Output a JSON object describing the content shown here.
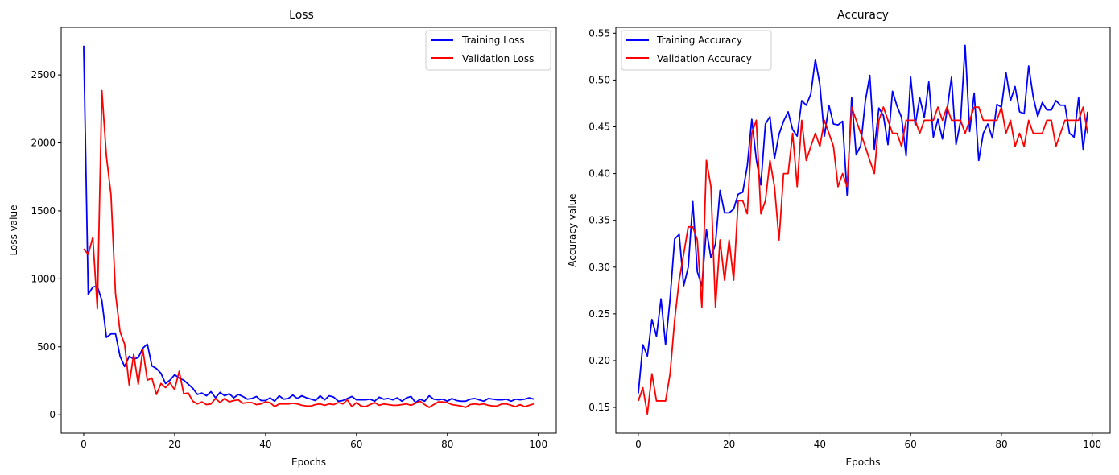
{
  "chart_data": [
    {
      "type": "line",
      "title": "Loss",
      "xlabel": "Epochs",
      "ylabel": "Loss value",
      "xlim": [
        -4.95,
        103.95
      ],
      "ylim": [
        -135,
        2850
      ],
      "xticks": [
        0,
        20,
        40,
        60,
        80,
        100
      ],
      "yticks": [
        0,
        500,
        1000,
        1500,
        2000,
        2500
      ],
      "grid": false,
      "legend": "upper right",
      "series": [
        {
          "name": "Training Loss",
          "color": "#0000ff",
          "values": [
            2715,
            885,
            940,
            945,
            840,
            570,
            595,
            595,
            430,
            355,
            430,
            410,
            420,
            490,
            520,
            360,
            340,
            305,
            230,
            255,
            295,
            270,
            255,
            225,
            195,
            150,
            160,
            140,
            170,
            125,
            165,
            140,
            155,
            125,
            150,
            135,
            115,
            120,
            135,
            105,
            105,
            125,
            100,
            140,
            115,
            120,
            145,
            120,
            140,
            125,
            115,
            105,
            140,
            110,
            140,
            130,
            100,
            105,
            120,
            135,
            110,
            110,
            110,
            115,
            100,
            130,
            115,
            120,
            110,
            125,
            100,
            125,
            135,
            90,
            115,
            100,
            140,
            115,
            110,
            115,
            100,
            120,
            105,
            100,
            100,
            115,
            120,
            110,
            100,
            120,
            115,
            110,
            110,
            115,
            100,
            115,
            110,
            115,
            125,
            115
          ]
        },
        {
          "name": "Validation Loss",
          "color": "#ff0000",
          "values": [
            1220,
            1180,
            1305,
            780,
            2385,
            1900,
            1620,
            890,
            610,
            520,
            220,
            445,
            225,
            480,
            255,
            270,
            150,
            230,
            200,
            235,
            185,
            320,
            155,
            160,
            100,
            80,
            95,
            75,
            80,
            120,
            90,
            120,
            95,
            105,
            110,
            85,
            90,
            90,
            75,
            80,
            95,
            90,
            60,
            80,
            80,
            80,
            85,
            80,
            70,
            65,
            65,
            75,
            80,
            70,
            80,
            75,
            90,
            80,
            110,
            60,
            90,
            65,
            60,
            75,
            90,
            70,
            80,
            75,
            70,
            70,
            75,
            80,
            70,
            85,
            100,
            75,
            55,
            75,
            95,
            95,
            90,
            75,
            70,
            65,
            55,
            75,
            80,
            75,
            80,
            70,
            65,
            65,
            80,
            80,
            70,
            60,
            75,
            60,
            70,
            80
          ]
        }
      ]
    },
    {
      "type": "line",
      "title": "Accuracy",
      "xlabel": "Epochs",
      "ylabel": "Accuracy value",
      "xlim": [
        -4.95,
        103.95
      ],
      "ylim": [
        0.1225,
        0.5563
      ],
      "xticks": [
        0,
        20,
        40,
        60,
        80,
        100
      ],
      "yticks": [
        0.15,
        0.2,
        0.25,
        0.3,
        0.35,
        0.4,
        0.45,
        0.5,
        0.55
      ],
      "ytick_labels": [
        "0.15",
        "0.20",
        "0.25",
        "0.30",
        "0.35",
        "0.40",
        "0.45",
        "0.50",
        "0.55"
      ],
      "grid": false,
      "legend": "upper left",
      "series": [
        {
          "name": "Training Accuracy",
          "color": "#0000ff",
          "values": [
            0.165,
            0.217,
            0.205,
            0.244,
            0.226,
            0.266,
            0.217,
            0.266,
            0.33,
            0.335,
            0.28,
            0.3,
            0.37,
            0.295,
            0.28,
            0.34,
            0.31,
            0.325,
            0.382,
            0.358,
            0.358,
            0.362,
            0.378,
            0.38,
            0.408,
            0.458,
            0.415,
            0.388,
            0.453,
            0.461,
            0.416,
            0.442,
            0.456,
            0.466,
            0.447,
            0.44,
            0.478,
            0.473,
            0.485,
            0.522,
            0.495,
            0.44,
            0.473,
            0.453,
            0.452,
            0.456,
            0.377,
            0.481,
            0.42,
            0.43,
            0.477,
            0.505,
            0.426,
            0.47,
            0.462,
            0.431,
            0.488,
            0.472,
            0.46,
            0.419,
            0.503,
            0.452,
            0.481,
            0.46,
            0.498,
            0.439,
            0.458,
            0.437,
            0.467,
            0.503,
            0.431,
            0.456,
            0.537,
            0.445,
            0.486,
            0.414,
            0.443,
            0.453,
            0.438,
            0.474,
            0.471,
            0.508,
            0.478,
            0.493,
            0.466,
            0.464,
            0.515,
            0.482,
            0.461,
            0.476,
            0.468,
            0.468,
            0.478,
            0.473,
            0.473,
            0.443,
            0.439,
            0.481,
            0.426,
            0.466
          ]
        },
        {
          "name": "Validation Accuracy",
          "color": "#ff0000",
          "values": [
            0.157,
            0.171,
            0.143,
            0.186,
            0.157,
            0.157,
            0.157,
            0.186,
            0.243,
            0.286,
            0.314,
            0.343,
            0.343,
            0.329,
            0.257,
            0.414,
            0.386,
            0.257,
            0.329,
            0.286,
            0.329,
            0.286,
            0.371,
            0.371,
            0.357,
            0.443,
            0.457,
            0.357,
            0.371,
            0.414,
            0.386,
            0.329,
            0.4,
            0.4,
            0.443,
            0.386,
            0.457,
            0.414,
            0.429,
            0.443,
            0.429,
            0.457,
            0.443,
            0.429,
            0.386,
            0.4,
            0.386,
            0.471,
            0.457,
            0.443,
            0.429,
            0.414,
            0.4,
            0.457,
            0.471,
            0.457,
            0.443,
            0.443,
            0.429,
            0.457,
            0.457,
            0.457,
            0.443,
            0.457,
            0.457,
            0.457,
            0.471,
            0.457,
            0.471,
            0.457,
            0.457,
            0.457,
            0.443,
            0.457,
            0.471,
            0.471,
            0.457,
            0.457,
            0.457,
            0.457,
            0.471,
            0.443,
            0.457,
            0.429,
            0.443,
            0.429,
            0.457,
            0.443,
            0.443,
            0.443,
            0.457,
            0.457,
            0.429,
            0.443,
            0.457,
            0.457,
            0.457,
            0.457,
            0.471,
            0.443
          ]
        }
      ]
    }
  ]
}
